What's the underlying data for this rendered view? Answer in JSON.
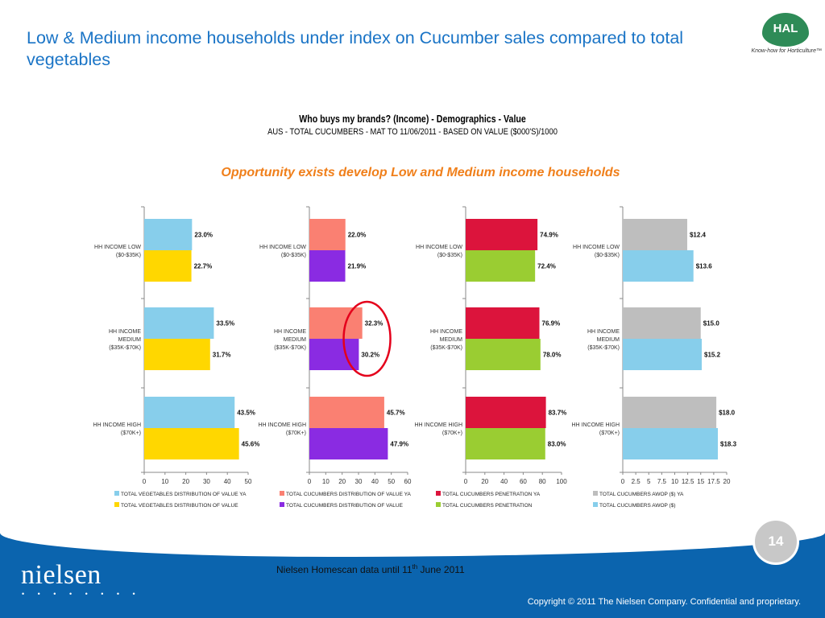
{
  "slide": {
    "title": "Low & Medium income households under index on Cucumber sales compared to total vegetables",
    "chart_title": "Who buys my brands? (Income) - Demographics - Value",
    "chart_subtitle": "AUS - TOTAL CUCUMBERS - MAT TO 11/06/2011 - BASED ON VALUE ($000'S)/1000",
    "callout": "Opportunity exists develop Low and Medium income households",
    "source_prefix": "Nielsen Homescan data until 11",
    "source_sup": "th",
    "source_suffix": " June 2011",
    "page_number": "14",
    "copyright": "Copyright © 2011 The Nielsen Company. Confidential and proprietary.",
    "brand": "nielsen",
    "brand_dots": "• • • • • • • •",
    "logo_text": "HAL",
    "logo_tagline": "Know-how for Horticulture™",
    "highlight_color": "#e4001b"
  },
  "chart_data": [
    {
      "type": "bar",
      "orientation": "horizontal",
      "categories": [
        "HH INCOME LOW\n($0-$35K)",
        "HH INCOME\nMEDIUM\n($35K-$70K)",
        "HH INCOME HIGH\n($70K+)"
      ],
      "series": [
        {
          "name": "TOTAL VEGETABLES DISTRIBUTION OF VALUE YA",
          "values": [
            23.0,
            33.5,
            43.5
          ],
          "labels": [
            "23.0%",
            "33.5%",
            "43.5%"
          ],
          "color": "#87ceeb"
        },
        {
          "name": "TOTAL VEGETABLES DISTRIBUTION OF VALUE",
          "values": [
            22.7,
            31.7,
            45.6
          ],
          "labels": [
            "22.7%",
            "31.7%",
            "45.6%"
          ],
          "color": "#ffd700"
        }
      ],
      "xlim": [
        0,
        50
      ],
      "ticks": [
        "0",
        "10",
        "20",
        "30",
        "40",
        "50"
      ]
    },
    {
      "type": "bar",
      "orientation": "horizontal",
      "categories": [
        "HH INCOME LOW\n($0-$35K)",
        "HH INCOME\nMEDIUM\n($35K-$70K)",
        "HH INCOME HIGH\n($70K+)"
      ],
      "series": [
        {
          "name": "TOTAL CUCUMBERS DISTRIBUTION OF VALUE YA",
          "values": [
            22.0,
            32.3,
            45.7
          ],
          "labels": [
            "22.0%",
            "32.3%",
            "45.7%"
          ],
          "color": "#fa8072"
        },
        {
          "name": "TOTAL CUCUMBERS DISTRIBUTION OF VALUE",
          "values": [
            21.9,
            30.2,
            47.9
          ],
          "labels": [
            "21.9%",
            "30.2%",
            "47.9%"
          ],
          "color": "#8a2be2"
        }
      ],
      "xlim": [
        0,
        60
      ],
      "ticks": [
        "0",
        "10",
        "20",
        "30",
        "40",
        "50",
        "60"
      ],
      "highlight_category": 1
    },
    {
      "type": "bar",
      "orientation": "horizontal",
      "categories": [
        "HH INCOME LOW\n($0-$35K)",
        "HH INCOME\nMEDIUM\n($35K-$70K)",
        "HH INCOME HIGH\n($70K+)"
      ],
      "series": [
        {
          "name": "TOTAL CUCUMBERS PENETRATION YA",
          "values": [
            74.9,
            76.9,
            83.7
          ],
          "labels": [
            "74.9%",
            "76.9%",
            "83.7%"
          ],
          "color": "#dc143c"
        },
        {
          "name": "TOTAL CUCUMBERS PENETRATION",
          "values": [
            72.4,
            78.0,
            83.0
          ],
          "labels": [
            "72.4%",
            "78.0%",
            "83.0%"
          ],
          "color": "#9acd32"
        }
      ],
      "xlim": [
        0,
        100
      ],
      "ticks": [
        "0",
        "20",
        "40",
        "60",
        "80",
        "100"
      ]
    },
    {
      "type": "bar",
      "orientation": "horizontal",
      "categories": [
        "HH INCOME LOW\n($0-$35K)",
        "HH INCOME\nMEDIUM\n($35K-$70K)",
        "HH INCOME HIGH\n($70K+)"
      ],
      "series": [
        {
          "name": "TOTAL CUCUMBERS AWOP ($) YA",
          "values": [
            12.4,
            15.0,
            18.0
          ],
          "labels": [
            "$12.4",
            "$15.0",
            "$18.0"
          ],
          "color": "#bebebe"
        },
        {
          "name": "TOTAL CUCUMBERS AWOP ($)",
          "values": [
            13.6,
            15.2,
            18.3
          ],
          "labels": [
            "$13.6",
            "$15.2",
            "$18.3"
          ],
          "color": "#87ceeb"
        }
      ],
      "xlim": [
        0,
        20
      ],
      "ticks": [
        "0",
        "2.5",
        "5",
        "7.5",
        "10",
        "12.5",
        "15",
        "17.5",
        "20"
      ]
    }
  ]
}
